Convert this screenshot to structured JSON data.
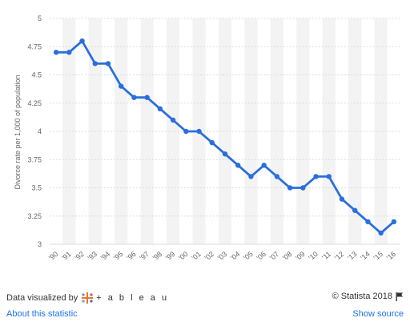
{
  "chart_data": {
    "type": "line",
    "title": "",
    "xlabel": "",
    "ylabel": "Divorce rate per 1,000 of population",
    "categories": [
      "'90",
      "'91",
      "'92",
      "'93",
      "'94",
      "'95",
      "'96",
      "'97",
      "'98",
      "'99",
      "'00",
      "'01",
      "'02",
      "'03",
      "'04",
      "'05",
      "'06",
      "'07",
      "'08",
      "'09",
      "'10",
      "'11",
      "'12",
      "'13",
      "'14",
      "'15",
      "'16"
    ],
    "series": [
      {
        "name": "",
        "values": [
          4.7,
          4.7,
          4.8,
          4.6,
          4.6,
          4.4,
          4.3,
          4.3,
          4.2,
          4.1,
          4.0,
          4.0,
          3.9,
          3.8,
          3.7,
          3.6,
          3.7,
          3.6,
          3.5,
          3.5,
          3.6,
          3.6,
          3.4,
          3.3,
          3.2,
          3.1,
          3.2
        ]
      }
    ],
    "ylim": [
      3,
      5
    ],
    "yticks": [
      "3",
      "3.25",
      "3.5",
      "3.75",
      "4",
      "4.25",
      "4.5",
      "4.75",
      "5"
    ],
    "grid": true,
    "line_color": "#2a6fdb",
    "band_color": "#f3f3f3"
  },
  "footer": {
    "visualized_by": "Data visualized by",
    "brand_word": "+ a b l e a u",
    "copyright": "© Statista 2018",
    "about_link": "About this statistic",
    "source_link": "Show source"
  },
  "icons": {
    "brand": "tableau-logo-icon",
    "flag": "flag-icon"
  }
}
